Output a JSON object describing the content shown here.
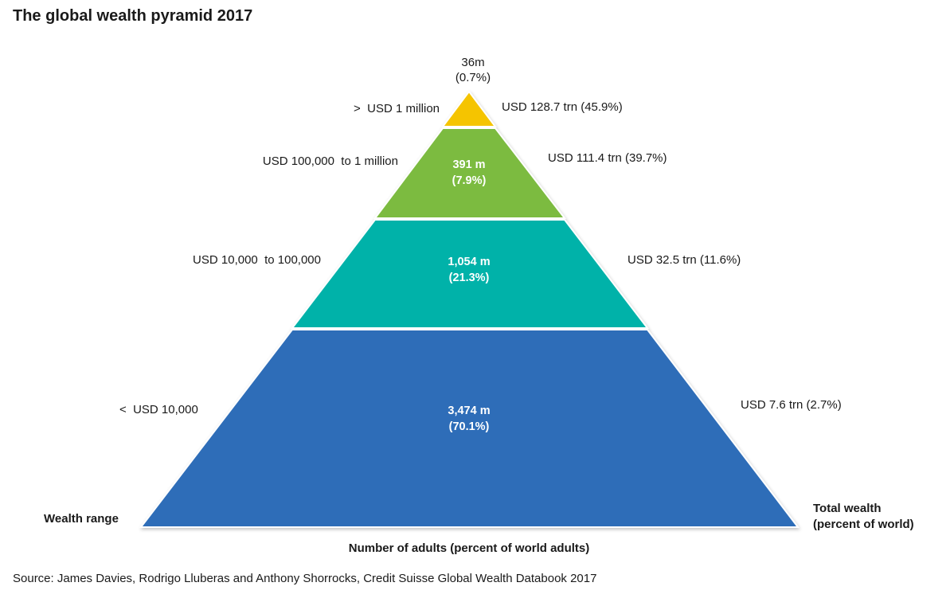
{
  "chart_data": {
    "type": "pyramid",
    "title": "The global wealth pyramid 2017",
    "left_axis_label": "Wealth range",
    "right_axis_label_line1": "Total wealth",
    "right_axis_label_line2": "(percent of world)",
    "xlabel": "Number of adults (percent of world adults)",
    "source": "Source: James Davies, Rodrigo Lluberas and Anthony Shorrocks, Credit Suisse Global Wealth Databook 2017",
    "tiers": [
      {
        "wealth_range": ">  USD 1 million",
        "adults": "36m",
        "adults_pct": "(0.7%)",
        "total_wealth": "USD 128.7 trn (45.9%)",
        "color": "#F5C400"
      },
      {
        "wealth_range": "USD 100,000  to 1 million",
        "adults": "391 m",
        "adults_pct": "(7.9%)",
        "total_wealth": "USD 111.4 trn (39.7%)",
        "color": "#7BBB3F"
      },
      {
        "wealth_range": "USD 10,000  to 100,000",
        "adults": "1,054 m",
        "adults_pct": "(21.3%)",
        "total_wealth": "USD 32.5 trn (11.6%)",
        "color": "#00B2A9"
      },
      {
        "wealth_range": "<  USD 10,000",
        "adults": "3,474 m",
        "adults_pct": "(70.1%)",
        "total_wealth": "USD 7.6 trn (2.7%)",
        "color": "#2E6DB8"
      }
    ]
  }
}
